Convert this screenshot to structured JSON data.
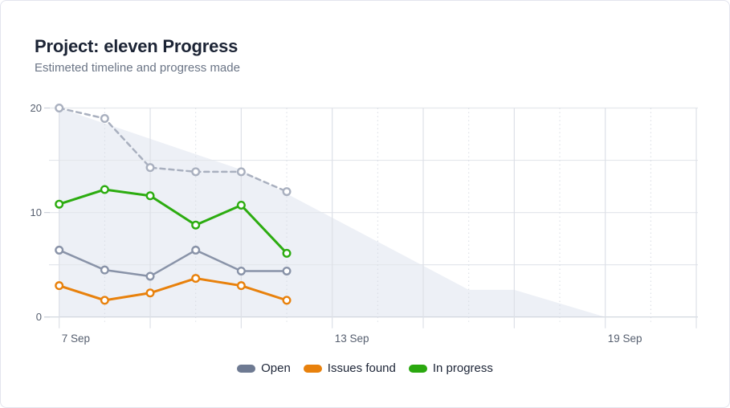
{
  "card": {
    "title": "Project: eleven Progress",
    "subtitle": "Estimeted timeline and progress made"
  },
  "chart_data": {
    "type": "line",
    "title": "Project: eleven Progress",
    "subtitle": "Estimeted timeline and progress made",
    "x_axis": {
      "unit": "days",
      "start_day_label": "7 Sep",
      "total_days": 14,
      "tick_labels": [
        {
          "label": "7 Sep",
          "day": 0
        },
        {
          "label": "13 Sep",
          "day": 6
        },
        {
          "label": "19 Sep",
          "day": 12
        }
      ],
      "solid_grid_days": [
        0,
        2,
        4,
        6,
        8,
        10,
        12,
        14
      ],
      "dotted_grid_days": [
        1,
        3,
        5,
        7,
        9,
        11,
        13
      ]
    },
    "y_axis": {
      "ylim": [
        0,
        20
      ],
      "grid_step": 5,
      "tick_values": [
        0,
        10,
        20
      ]
    },
    "days": [
      0,
      1,
      2,
      3,
      4,
      5
    ],
    "series": [
      {
        "name": "Estimated timeline",
        "style": "dashed",
        "color": "#a9b0bf",
        "width": 2.5,
        "values": [
          20,
          19,
          14.3,
          13.9,
          13.9,
          12
        ]
      },
      {
        "name": "Open",
        "style": "solid",
        "color": "#8993a8",
        "width": 2.5,
        "values": [
          6.4,
          4.5,
          3.9,
          6.4,
          4.4,
          4.4
        ]
      },
      {
        "name": "Issues found",
        "style": "solid",
        "color": "#e8810c",
        "width": 3,
        "values": [
          3.0,
          1.6,
          2.3,
          3.7,
          3.0,
          1.6
        ]
      },
      {
        "name": "In progress",
        "style": "solid",
        "color": "#2cac10",
        "width": 3,
        "values": [
          10.8,
          12.2,
          11.6,
          8.8,
          10.7,
          6.1
        ]
      }
    ],
    "background_area": {
      "color": "#edf0f6",
      "points": [
        [
          0,
          20
        ],
        [
          4,
          14.1
        ],
        [
          9,
          2.6
        ],
        [
          10,
          2.6
        ],
        [
          12,
          0
        ]
      ]
    },
    "legend": [
      {
        "label": "Open",
        "color": "#6e7a92"
      },
      {
        "label": "Issues found",
        "color": "#e8810c"
      },
      {
        "label": "In progress",
        "color": "#2aa80f"
      }
    ],
    "colors": {
      "grid_h": "#e4e7ec",
      "grid_v_solid": "#dde0e7",
      "grid_v_dotted": "#d8dce3",
      "axis_line": "#ced3db",
      "tick_text": "#565f6f"
    }
  }
}
